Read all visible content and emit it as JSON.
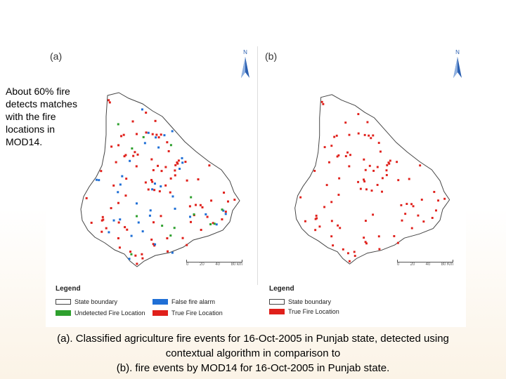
{
  "panels": [
    {
      "label": "(a)",
      "north": "N"
    },
    {
      "label": "(b)",
      "north": "N"
    }
  ],
  "note": {
    "lines": [
      "About 60% fire",
      "detects matches",
      "with the fire",
      "locations in",
      "MOD14."
    ]
  },
  "scalebar_a": {
    "labels": [
      "0",
      "20",
      "40",
      "80 km"
    ]
  },
  "scalebar_b": {
    "labels": [
      "0",
      "20",
      "40",
      "80 Km"
    ]
  },
  "legend_a": {
    "title": "Legend",
    "items": [
      {
        "label": "State boundary",
        "color": "#ffffff"
      },
      {
        "label": "False fire alarm",
        "color": "#1f6fd6"
      },
      {
        "label": "Undetected Fire Location",
        "color": "#2ea02e"
      },
      {
        "label": "True Fire Location",
        "color": "#e0201b"
      }
    ]
  },
  "legend_b": {
    "title": "Legend",
    "items": [
      {
        "label": "State boundary",
        "color": "#ffffff"
      },
      {
        "label": "True Fire Location",
        "color": "#e0201b"
      }
    ]
  },
  "caption": {
    "line1": "(a). Classified agriculture fire events for 16-Oct-2005 in Punjab state, detected using",
    "line2": "contextual algorithm in comparison to",
    "line3": "(b). fire events by MOD14 for 16-Oct-2005 in Punjab state."
  },
  "colors": {
    "true_fire": "#e0201b",
    "false_alarm": "#1f6fd6",
    "undetected": "#2ea02e",
    "north_arrow": "#2b5fb0"
  }
}
